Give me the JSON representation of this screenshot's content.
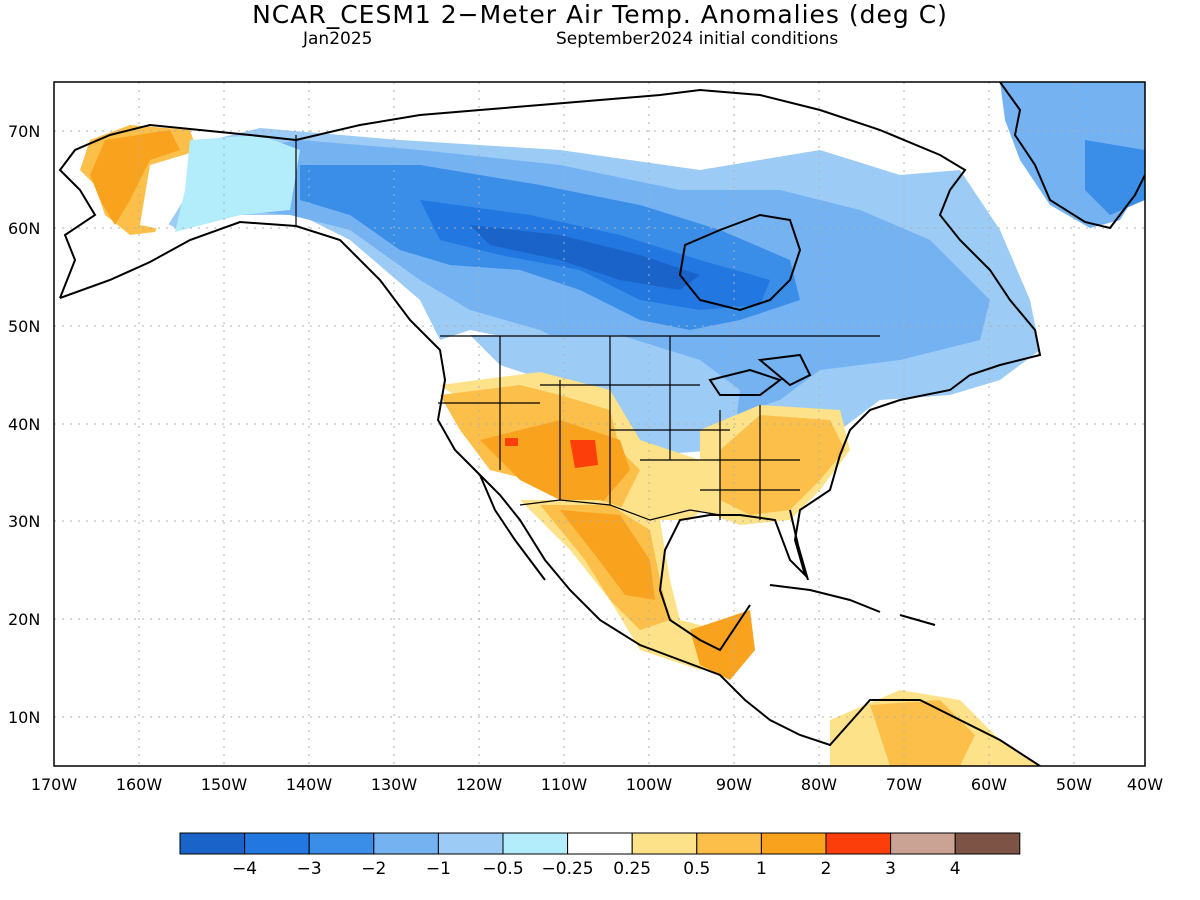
{
  "header": {
    "title": "NCAR_CESM1 2−Meter Air Temp. Anomalies (deg C)",
    "valid_month": "Jan2025",
    "init_conditions": "September2024 initial conditions"
  },
  "axes": {
    "lat_labels": [
      "70N",
      "60N",
      "50N",
      "40N",
      "30N",
      "20N",
      "10N"
    ],
    "lon_labels": [
      "170W",
      "160W",
      "150W",
      "140W",
      "130W",
      "120W",
      "110W",
      "100W",
      "90W",
      "80W",
      "70W",
      "60W",
      "50W",
      "40W"
    ]
  },
  "colorbar": {
    "colors": [
      "#1a63c9",
      "#2277e0",
      "#3a8ee8",
      "#74b2f2",
      "#9cccf5",
      "#b3ecfa",
      "#ffffff",
      "#fde28a",
      "#fcc04a",
      "#f9a21e",
      "#fb3e0a",
      "#cba395",
      "#7d5346"
    ],
    "labels": [
      "−4",
      "−3",
      "−2",
      "−1",
      "−0.5",
      "−0.25",
      "0.25",
      "0.5",
      "1",
      "2",
      "3",
      "4"
    ]
  },
  "map_colors": {
    "ocean": "#ffffff",
    "coast": "#000000",
    "grid": "#b0b0b0"
  }
}
